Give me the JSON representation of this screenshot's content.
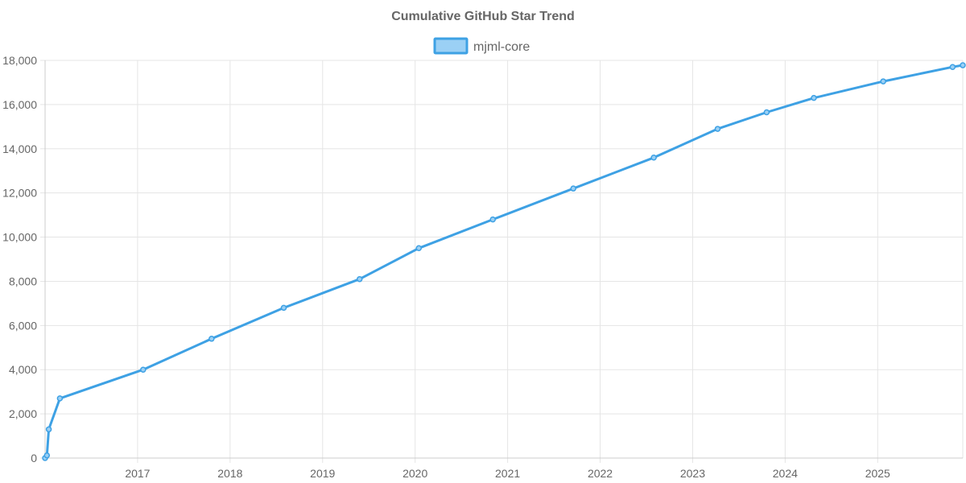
{
  "chart_data": {
    "type": "line",
    "title": "Cumulative GitHub Star Trend",
    "xlabel": "",
    "ylabel": "",
    "legend_position": "top-center",
    "grid": true,
    "xlim": [
      2016.0,
      2025.92
    ],
    "ylim": [
      0,
      18000
    ],
    "x_ticks": [
      2017,
      2018,
      2019,
      2020,
      2021,
      2022,
      2023,
      2024,
      2025
    ],
    "x_tick_labels": [
      "2017",
      "2018",
      "2019",
      "2020",
      "2021",
      "2022",
      "2023",
      "2024",
      "2025"
    ],
    "y_ticks": [
      0,
      2000,
      4000,
      6000,
      8000,
      10000,
      12000,
      14000,
      16000,
      18000
    ],
    "y_tick_labels": [
      "0",
      "2,000",
      "4,000",
      "6,000",
      "8,000",
      "10,000",
      "12,000",
      "14,000",
      "16,000",
      "18,000"
    ],
    "series": [
      {
        "name": "mjml-core",
        "color": "#3ea1e4",
        "fill": "#9bd0f5",
        "x": [
          2016.0,
          2016.02,
          2016.04,
          2016.16,
          2017.06,
          2017.8,
          2018.58,
          2019.4,
          2020.04,
          2020.84,
          2021.71,
          2022.58,
          2023.27,
          2023.8,
          2024.31,
          2025.06,
          2025.81,
          2025.92
        ],
        "values": [
          0,
          120,
          1300,
          2700,
          4000,
          5400,
          6800,
          8100,
          9500,
          10800,
          12200,
          13600,
          14900,
          15650,
          16300,
          17050,
          17700,
          17780
        ]
      }
    ]
  }
}
